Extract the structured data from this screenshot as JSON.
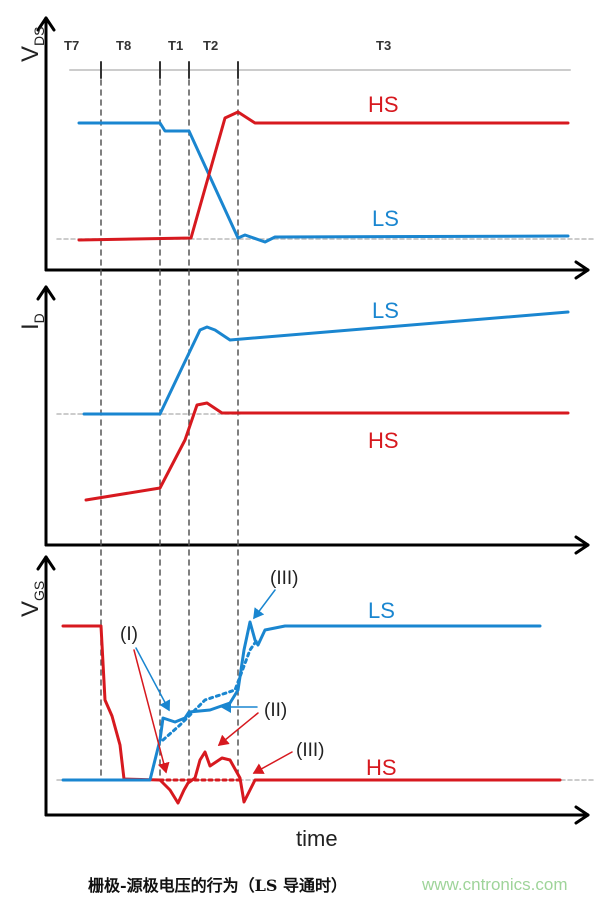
{
  "phases": [
    "T7",
    "T8",
    "T1",
    "T2",
    "T3"
  ],
  "panels": {
    "vds": {
      "ylabel_main": "V",
      "ylabel_sub": "DS",
      "hs_label": "HS",
      "ls_label": "LS"
    },
    "id": {
      "ylabel_main": "I",
      "ylabel_sub": "D",
      "hs_label": "HS",
      "ls_label": "LS"
    },
    "vgs": {
      "ylabel_main": "V",
      "ylabel_sub": "GS",
      "hs_label": "HS",
      "ls_label": "LS",
      "annotations": {
        "i": "(I)",
        "ii": "(II)",
        "iii_top": "(III)",
        "iii_bottom": "(III)"
      }
    }
  },
  "xlabel": "time",
  "caption": "栅极-源极电压的行为（LS 导通时）",
  "watermark": "www.cntronics.com",
  "colors": {
    "hs": "#d7191f",
    "ls": "#1a86d0",
    "grid": "#bbbbbb",
    "axis": "#000000"
  }
}
